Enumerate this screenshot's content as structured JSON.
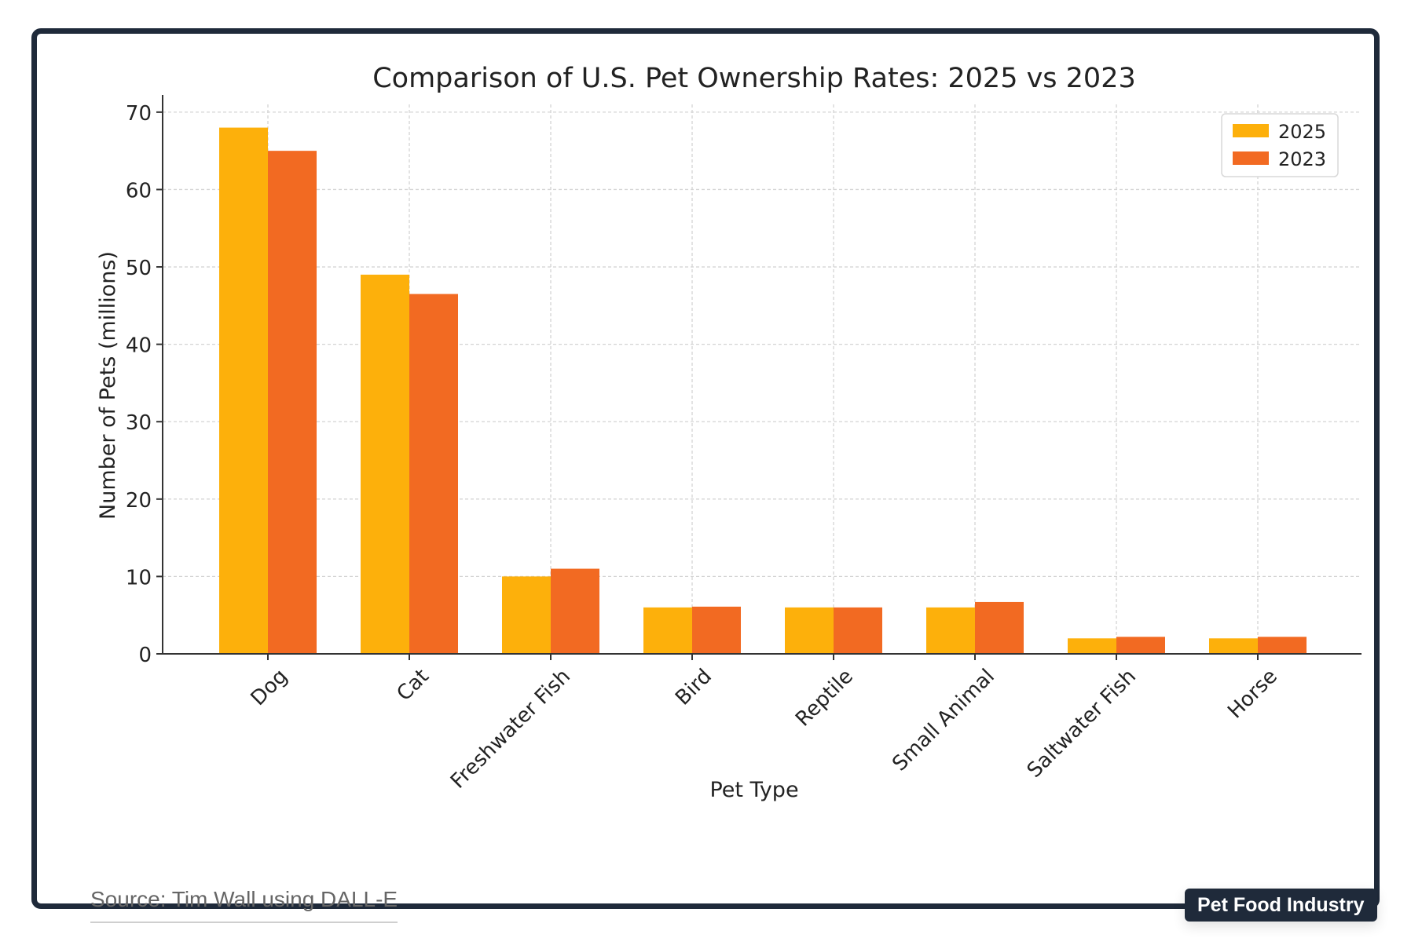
{
  "chart_data": {
    "type": "bar",
    "title": "Comparison of U.S. Pet Ownership Rates: 2025 vs 2023",
    "xlabel": "Pet Type",
    "ylabel": "Number of Pets (millions)",
    "categories": [
      "Dog",
      "Cat",
      "Freshwater Fish",
      "Bird",
      "Reptile",
      "Small Animal",
      "Saltwater Fish",
      "Horse"
    ],
    "series": [
      {
        "name": "2025",
        "color": "#fdb00b",
        "values": [
          68,
          49,
          10,
          6,
          6,
          6,
          2,
          2
        ]
      },
      {
        "name": "2023",
        "color": "#f26a22",
        "values": [
          65,
          46.5,
          11,
          6.1,
          6,
          6.7,
          2.2,
          2.2
        ]
      }
    ],
    "ylim": [
      0,
      71
    ],
    "yticks": [
      0,
      10,
      20,
      30,
      40,
      50,
      60,
      70
    ],
    "grid": true,
    "legend_position": "top-right"
  },
  "footer": {
    "source": "Source: Tim Wall using DALL-E",
    "brand": "Pet Food Industry"
  }
}
